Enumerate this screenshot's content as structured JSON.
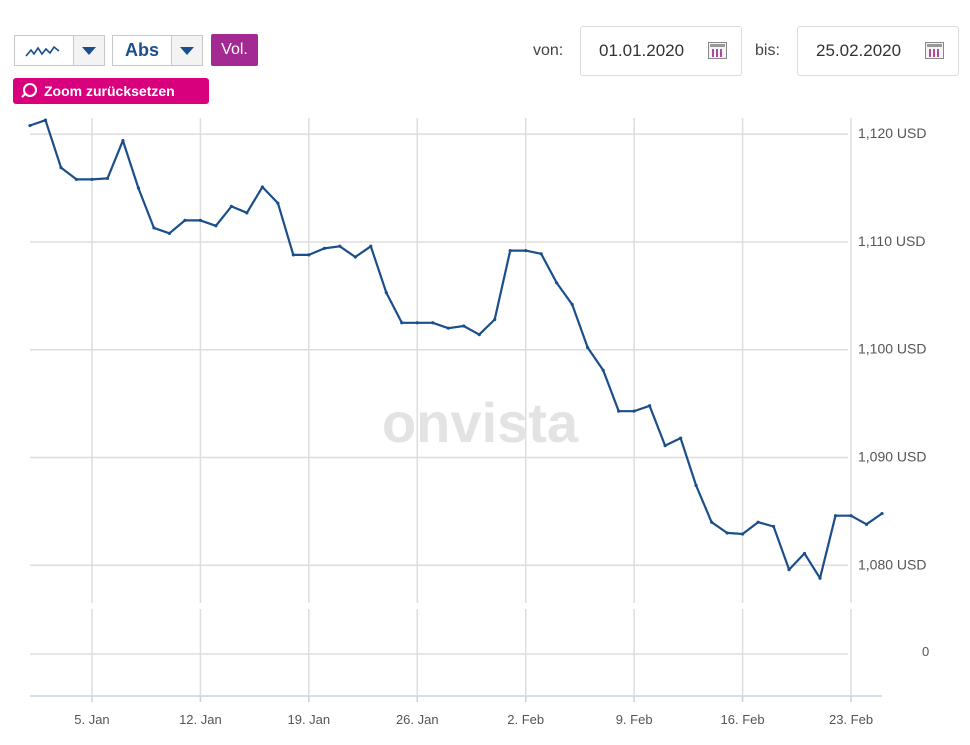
{
  "toolbar": {
    "chart_type_icon": "line-chart-icon",
    "scale_label": "Abs",
    "volume_label": "Vol.",
    "zoom_reset_label": "Zoom zurücksetzen",
    "from_label": "von:",
    "from_date": "01.01.2020",
    "to_label": "bis:",
    "to_date": "25.02.2020"
  },
  "watermark": "onvista",
  "colors": {
    "line": "#1a4f8b",
    "volume_button": "#a22a92",
    "zoom_button": "#d9007e",
    "grid": "#dddddd"
  },
  "chart_data": {
    "type": "line",
    "title": "",
    "xlabel": "",
    "ylabel": "",
    "ylim": [
      1076.5,
      1121.5
    ],
    "y_ticks": [
      1080,
      1090,
      1100,
      1110,
      1120
    ],
    "y_tick_labels": [
      "1,080 USD",
      "1,090 USD",
      "1,100 USD",
      "1,110 USD",
      "1,120 USD"
    ],
    "volume_axis_label": "0",
    "x_ticks": [
      "2020-01-05",
      "2020-01-12",
      "2020-01-19",
      "2020-01-26",
      "2020-02-02",
      "2020-02-09",
      "2020-02-16",
      "2020-02-23"
    ],
    "x_tick_labels": [
      "5. Jan",
      "12. Jan",
      "19. Jan",
      "26. Jan",
      "2. Feb",
      "9. Feb",
      "16. Feb",
      "23. Feb"
    ],
    "xlim": [
      "2020-01-01",
      "2020-02-25"
    ],
    "grid": true,
    "series": [
      {
        "x": [
          "2020-01-01",
          "2020-01-02",
          "2020-01-03",
          "2020-01-04",
          "2020-01-05",
          "2020-01-06",
          "2020-01-07",
          "2020-01-08",
          "2020-01-09",
          "2020-01-10",
          "2020-01-11",
          "2020-01-12",
          "2020-01-13",
          "2020-01-14",
          "2020-01-15",
          "2020-01-16",
          "2020-01-17",
          "2020-01-18",
          "2020-01-19",
          "2020-01-20",
          "2020-01-21",
          "2020-01-22",
          "2020-01-23",
          "2020-01-24",
          "2020-01-25",
          "2020-01-26",
          "2020-01-27",
          "2020-01-28",
          "2020-01-29",
          "2020-01-30",
          "2020-01-31",
          "2020-02-01",
          "2020-02-02",
          "2020-02-03",
          "2020-02-04",
          "2020-02-05",
          "2020-02-06",
          "2020-02-07",
          "2020-02-08",
          "2020-02-09",
          "2020-02-10",
          "2020-02-11",
          "2020-02-12",
          "2020-02-13",
          "2020-02-14",
          "2020-02-15",
          "2020-02-16",
          "2020-02-17",
          "2020-02-18",
          "2020-02-19",
          "2020-02-20",
          "2020-02-21",
          "2020-02-22",
          "2020-02-23",
          "2020-02-24",
          "2020-02-25"
        ],
        "values": [
          1120.8,
          1121.3,
          1116.9,
          1115.8,
          1115.8,
          1115.9,
          1119.4,
          1115.0,
          1111.3,
          1110.8,
          1112.0,
          1112.0,
          1111.5,
          1113.3,
          1112.7,
          1115.1,
          1113.6,
          1108.8,
          1108.8,
          1109.4,
          1109.6,
          1108.6,
          1109.6,
          1105.3,
          1102.5,
          1102.5,
          1102.5,
          1102.0,
          1102.2,
          1101.4,
          1102.8,
          1109.2,
          1109.2,
          1108.9,
          1106.2,
          1104.2,
          1100.2,
          1098.1,
          1094.3,
          1094.3,
          1094.8,
          1091.1,
          1091.8,
          1087.4,
          1084.0,
          1083.0,
          1082.9,
          1084.0,
          1083.6,
          1079.6,
          1081.1,
          1078.8,
          1084.6,
          1084.6,
          1083.8,
          1084.8
        ]
      }
    ]
  }
}
